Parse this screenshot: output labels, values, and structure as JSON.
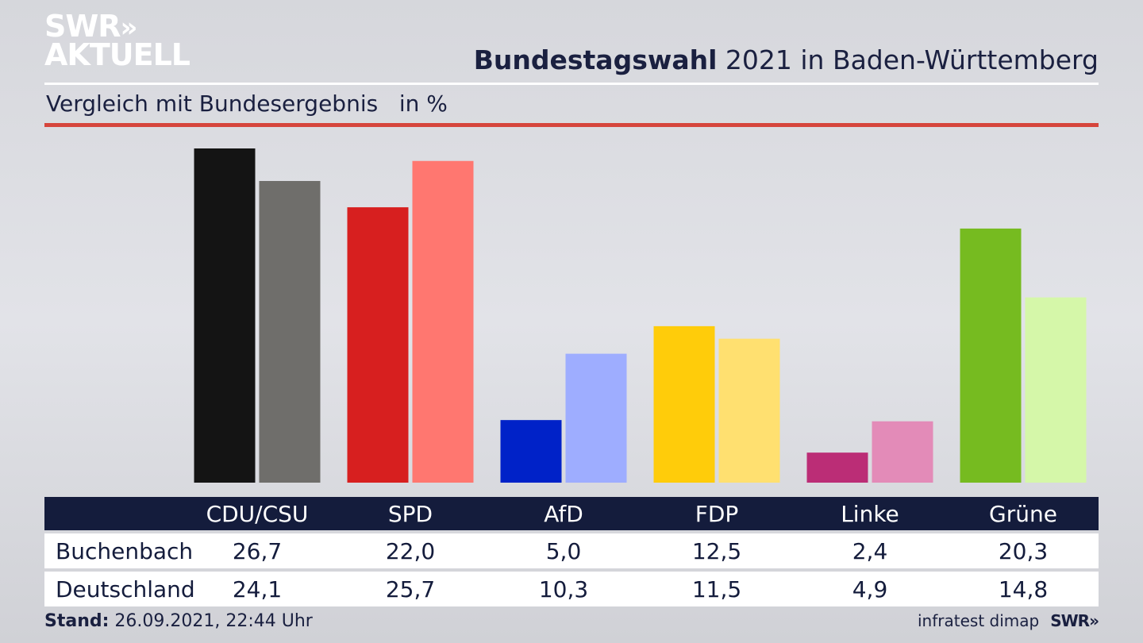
{
  "logo": {
    "line1": "SWR",
    "chevrons": "»",
    "line2": "AKTUELL"
  },
  "header": {
    "title_bold": "Bundestagswahl",
    "title_rest": " 2021 in Baden-Württemberg",
    "subtitle": "Vergleich mit Bundesergebnis   in %"
  },
  "footer": {
    "stand_label": "Stand:",
    "stand_value": " 26.09.2021, 22:44 Uhr",
    "source": "infratest dimap",
    "brand": "SWR»"
  },
  "chart_data": {
    "type": "bar",
    "categories": [
      "CDU/CSU",
      "SPD",
      "AfD",
      "FDP",
      "Linke",
      "Grüne"
    ],
    "series": [
      {
        "name": "Buchenbach",
        "values": [
          26.7,
          22.0,
          5.0,
          12.5,
          2.4,
          20.3
        ],
        "colors": [
          "#141414",
          "#d71f1f",
          "#0022c8",
          "#ffcc0a",
          "#bb2d76",
          "#76bb20"
        ]
      },
      {
        "name": "Deutschland",
        "values": [
          24.1,
          25.7,
          10.3,
          11.5,
          4.9,
          14.8
        ],
        "colors": [
          "#6f6e6b",
          "#ff7770",
          "#9eadff",
          "#ffe070",
          "#e38bb8",
          "#d5f7a9"
        ]
      }
    ],
    "value_labels": [
      [
        "26,7",
        "22,0",
        "5,0",
        "12,5",
        "2,4",
        "20,3"
      ],
      [
        "24,1",
        "25,7",
        "10,3",
        "11,5",
        "4,9",
        "14,8"
      ]
    ],
    "ylim": [
      0,
      26.7
    ],
    "legend": "table below chart",
    "grid": false
  }
}
